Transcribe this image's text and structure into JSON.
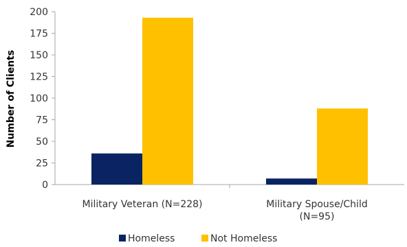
{
  "chart_data": {
    "type": "bar",
    "title": "",
    "xlabel": "",
    "ylabel": "Number of Clients",
    "ylim": [
      0,
      200
    ],
    "yticks": [
      0,
      25,
      50,
      75,
      100,
      125,
      150,
      175,
      200
    ],
    "grid": false,
    "legend_position": "bottom",
    "categories": [
      [
        "Military Veteran (N=228)"
      ],
      [
        "Military Spouse/Child",
        "(N=95)"
      ]
    ],
    "series": [
      {
        "name": "Homeless",
        "color": "#0a2463",
        "values": [
          36,
          7
        ]
      },
      {
        "name": "Not Homeless",
        "color": "#ffc000",
        "values": [
          193,
          88
        ]
      }
    ]
  }
}
